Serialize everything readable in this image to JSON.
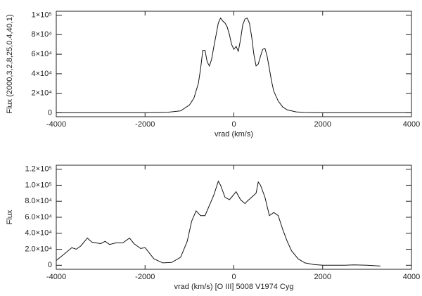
{
  "chart_data": [
    {
      "type": "line",
      "xlabel": "vrad (km/s)",
      "ylabel": "Flux (2000,3,2,8,25,0.4,40,1)",
      "xlim": [
        -4000,
        4000
      ],
      "xticks": [
        -4000,
        -2000,
        0,
        2000,
        4000
      ],
      "ylim": [
        -4000,
        104000
      ],
      "yticks": [
        0,
        {
          "value": 20000,
          "label": "2×10⁴"
        },
        {
          "value": 40000,
          "label": "4×10⁴"
        },
        {
          "value": 60000,
          "label": "6×10⁴"
        },
        {
          "value": 80000,
          "label": "8×10⁴"
        },
        {
          "value": 100000,
          "label": "1×10⁵"
        }
      ],
      "grid": false,
      "series": [
        {
          "color": "#111111",
          "x": [
            -4000,
            -3000,
            -2000,
            -1500,
            -1200,
            -1000,
            -900,
            -800,
            -750,
            -700,
            -650,
            -600,
            -550,
            -500,
            -450,
            -400,
            -350,
            -300,
            -250,
            -200,
            -150,
            -100,
            -50,
            0,
            50,
            100,
            150,
            200,
            250,
            300,
            350,
            400,
            450,
            500,
            550,
            600,
            650,
            700,
            750,
            800,
            850,
            900,
            1000,
            1100,
            1200,
            1400,
            1600,
            2000,
            3000,
            4000
          ],
          "values": [
            0,
            0,
            0,
            500,
            2000,
            8000,
            15000,
            30000,
            45000,
            64000,
            64000,
            52000,
            48000,
            55000,
            68000,
            80000,
            92000,
            97000,
            94000,
            92000,
            88000,
            80000,
            70000,
            65000,
            68000,
            63000,
            75000,
            90000,
            96000,
            97000,
            92000,
            78000,
            60000,
            48000,
            50000,
            58000,
            65000,
            66000,
            58000,
            45000,
            32000,
            22000,
            12000,
            6000,
            3000,
            1000,
            300,
            0,
            0,
            0
          ]
        }
      ]
    },
    {
      "type": "line",
      "xlabel": "vrad (km/s)   [O III] 5008  V1974 Cyg",
      "ylabel": "Flux",
      "xlim": [
        -4000,
        4000
      ],
      "xticks": [
        -4000,
        -2000,
        0,
        2000,
        4000
      ],
      "ylim": [
        -5000,
        125000
      ],
      "yticks": [
        0,
        {
          "value": 20000,
          "label": "2.0×10⁴"
        },
        {
          "value": 40000,
          "label": "4.0×10⁴"
        },
        {
          "value": 60000,
          "label": "6.0×10⁴"
        },
        {
          "value": 80000,
          "label": "8.0×10⁴"
        },
        {
          "value": 100000,
          "label": "1.0×10⁵"
        },
        {
          "value": 120000,
          "label": "1.2×10⁵"
        }
      ],
      "grid": false,
      "series": [
        {
          "color": "#111111",
          "x": [
            -4000,
            -3800,
            -3650,
            -3550,
            -3450,
            -3300,
            -3200,
            -3000,
            -2900,
            -2800,
            -2650,
            -2500,
            -2350,
            -2250,
            -2100,
            -2000,
            -1900,
            -1800,
            -1600,
            -1400,
            -1200,
            -1050,
            -950,
            -850,
            -750,
            -650,
            -550,
            -450,
            -350,
            -300,
            -200,
            -100,
            -50,
            50,
            150,
            250,
            300,
            400,
            500,
            550,
            600,
            700,
            800,
            900,
            1000,
            1100,
            1200,
            1300,
            1450,
            1600,
            1800,
            2000,
            2500,
            2700,
            3000,
            3300
          ],
          "values": [
            6000,
            15000,
            22000,
            20000,
            24000,
            34000,
            29000,
            27000,
            30000,
            26000,
            28000,
            28000,
            34000,
            27000,
            21000,
            22000,
            15000,
            8000,
            3000,
            3500,
            10000,
            30000,
            55000,
            68000,
            62000,
            62000,
            75000,
            88000,
            105000,
            100000,
            85000,
            82000,
            85000,
            92000,
            82000,
            77000,
            80000,
            85000,
            90000,
            104000,
            100000,
            85000,
            62000,
            66000,
            62000,
            45000,
            30000,
            18000,
            8000,
            3000,
            1000,
            0,
            0,
            500,
            0,
            -1000
          ]
        }
      ]
    }
  ]
}
